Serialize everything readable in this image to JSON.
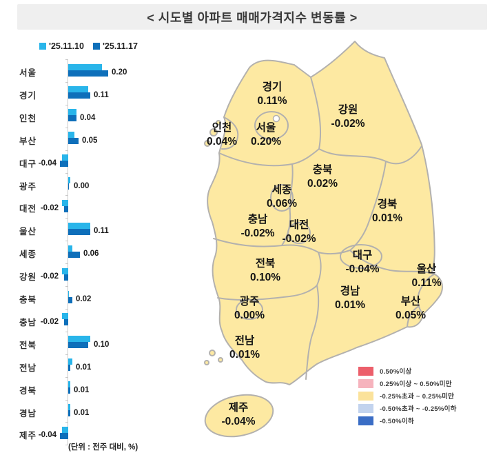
{
  "title": "< 시도별 아파트 매매가격지수 변동률 >",
  "unit_note": "(단위 : 전주 대비, %)",
  "chart_data": [
    {
      "type": "bar",
      "orientation": "horizontal",
      "title": "시도별 아파트 매매가격지수 변동률",
      "unit": "전주 대비, %",
      "categories": [
        "서울",
        "경기",
        "인천",
        "부산",
        "대구",
        "광주",
        "대전",
        "울산",
        "세종",
        "강원",
        "충북",
        "충남",
        "전북",
        "전남",
        "경북",
        "경남",
        "제주"
      ],
      "series": [
        {
          "name": "'25.11.10",
          "color": "#29b5ea",
          "estimated_from_pixels": true,
          "values": [
            0.17,
            0.1,
            0.04,
            0.03,
            -0.03,
            0.01,
            -0.03,
            0.11,
            0.02,
            -0.03,
            0.0,
            -0.03,
            0.11,
            0.02,
            0.01,
            0.01,
            -0.03
          ]
        },
        {
          "name": "'25.11.17",
          "color": "#0e6fba",
          "values": [
            0.2,
            0.11,
            0.04,
            0.05,
            -0.04,
            0.0,
            -0.02,
            0.11,
            0.06,
            -0.02,
            0.02,
            -0.02,
            0.1,
            0.01,
            0.01,
            0.01,
            -0.04
          ]
        }
      ],
      "value_labels": [
        "0.20",
        "0.11",
        "0.04",
        "0.05",
        "-0.04",
        "0.00",
        "-0.02",
        "0.11",
        "0.06",
        "-0.02",
        "0.02",
        "-0.02",
        "0.10",
        "0.01",
        "0.01",
        "0.01",
        "-0.04"
      ],
      "xlim": [
        -0.1,
        0.25
      ],
      "grid": false,
      "axis_color": "#c9c9c9",
      "legend_position": "top"
    },
    {
      "type": "heatmap",
      "subtype": "choropleth-map-south-korea",
      "fill_color": "#fde9a2",
      "border_color": "#b3b1ae",
      "regions": [
        {
          "name": "경기",
          "value": "0.11%"
        },
        {
          "name": "강원",
          "value": "-0.02%"
        },
        {
          "name": "인천",
          "value": "0.04%"
        },
        {
          "name": "서울",
          "value": "0.20%"
        },
        {
          "name": "충북",
          "value": "0.02%"
        },
        {
          "name": "세종",
          "value": "0.06%"
        },
        {
          "name": "충남",
          "value": "-0.02%"
        },
        {
          "name": "대전",
          "value": "-0.02%"
        },
        {
          "name": "경북",
          "value": "0.01%"
        },
        {
          "name": "대구",
          "value": "-0.04%"
        },
        {
          "name": "울산",
          "value": "0.11%"
        },
        {
          "name": "전북",
          "value": "0.10%"
        },
        {
          "name": "경남",
          "value": "0.01%"
        },
        {
          "name": "부산",
          "value": "0.05%"
        },
        {
          "name": "광주",
          "value": "0.00%"
        },
        {
          "name": "전남",
          "value": "0.01%"
        },
        {
          "name": "제주",
          "value": "-0.04%"
        }
      ],
      "legend": [
        {
          "label": "0.50%이상",
          "color": "#ec5f6b"
        },
        {
          "label": "0.25%이상 ~ 0.50%미만",
          "color": "#f6b3bd"
        },
        {
          "label": "-0.25%초과 ~ 0.25%미만",
          "color": "#fbe29b"
        },
        {
          "label": "-0.50%초과 ~ -0.25%이하",
          "color": "#c2d3ee"
        },
        {
          "label": "-0.50%이하",
          "color": "#3a6dc5"
        }
      ]
    }
  ]
}
